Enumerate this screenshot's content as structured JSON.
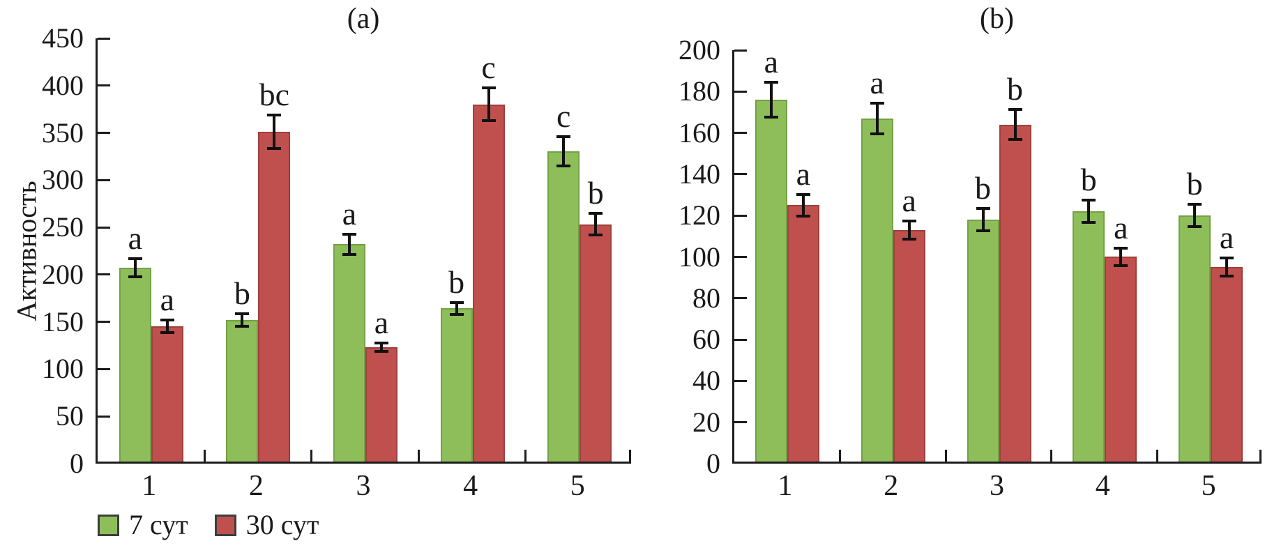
{
  "figure": {
    "background": "#ffffff",
    "axis_color": "#1c1c1c",
    "error_bar_color": "#111111",
    "legend": {
      "position": "bottom-left",
      "items": [
        {
          "label": "7 сут",
          "color": "#8dbe5a",
          "border": "#3d3d3d"
        },
        {
          "label": "30 сут",
          "color": "#c0504d",
          "border": "#3d3d3d"
        }
      ]
    }
  },
  "chart_data": [
    {
      "type": "bar",
      "title": "(a)",
      "ylabel": "Активность",
      "xlabel": "",
      "ylim": [
        0,
        450
      ],
      "yticks": [
        0,
        50,
        100,
        150,
        200,
        250,
        300,
        350,
        400,
        450
      ],
      "grid": false,
      "categories": [
        "1",
        "2",
        "3",
        "4",
        "5"
      ],
      "series": [
        {
          "name": "7 сут",
          "color": "#8dbe5a",
          "edge_color": "#74a144",
          "values": [
            205,
            150,
            230,
            162,
            328
          ],
          "errors": [
            11,
            8,
            12,
            8,
            17
          ],
          "sig_letters": [
            "a",
            "b",
            "a",
            "b",
            "c"
          ]
        },
        {
          "name": "30 сут",
          "color": "#c0504d",
          "edge_color": "#9e403d",
          "values": [
            143,
            349,
            121,
            378,
            251
          ],
          "errors": [
            8,
            19,
            6,
            19,
            13
          ],
          "sig_letters": [
            "a",
            "bc",
            "a",
            "c",
            "b"
          ]
        }
      ]
    },
    {
      "type": "bar",
      "title": "(b)",
      "ylabel": "",
      "xlabel": "",
      "ylim": [
        0,
        200
      ],
      "yticks": [
        0,
        20,
        40,
        60,
        80,
        100,
        120,
        140,
        160,
        180,
        200
      ],
      "grid": false,
      "categories": [
        "1",
        "2",
        "3",
        "4",
        "5"
      ],
      "series": [
        {
          "name": "7 сут",
          "color": "#8dbe5a",
          "edge_color": "#74a144",
          "values": [
            175,
            166,
            117,
            121,
            119
          ],
          "errors": [
            9,
            8,
            6,
            6,
            6
          ],
          "sig_letters": [
            "a",
            "a",
            "b",
            "b",
            "b"
          ]
        },
        {
          "name": "30 сут",
          "color": "#c0504d",
          "edge_color": "#9e403d",
          "values": [
            124,
            112,
            163,
            99,
            94
          ],
          "errors": [
            6,
            5,
            8,
            5,
            5
          ],
          "sig_letters": [
            "a",
            "a",
            "b",
            "a",
            "a"
          ]
        }
      ]
    }
  ]
}
